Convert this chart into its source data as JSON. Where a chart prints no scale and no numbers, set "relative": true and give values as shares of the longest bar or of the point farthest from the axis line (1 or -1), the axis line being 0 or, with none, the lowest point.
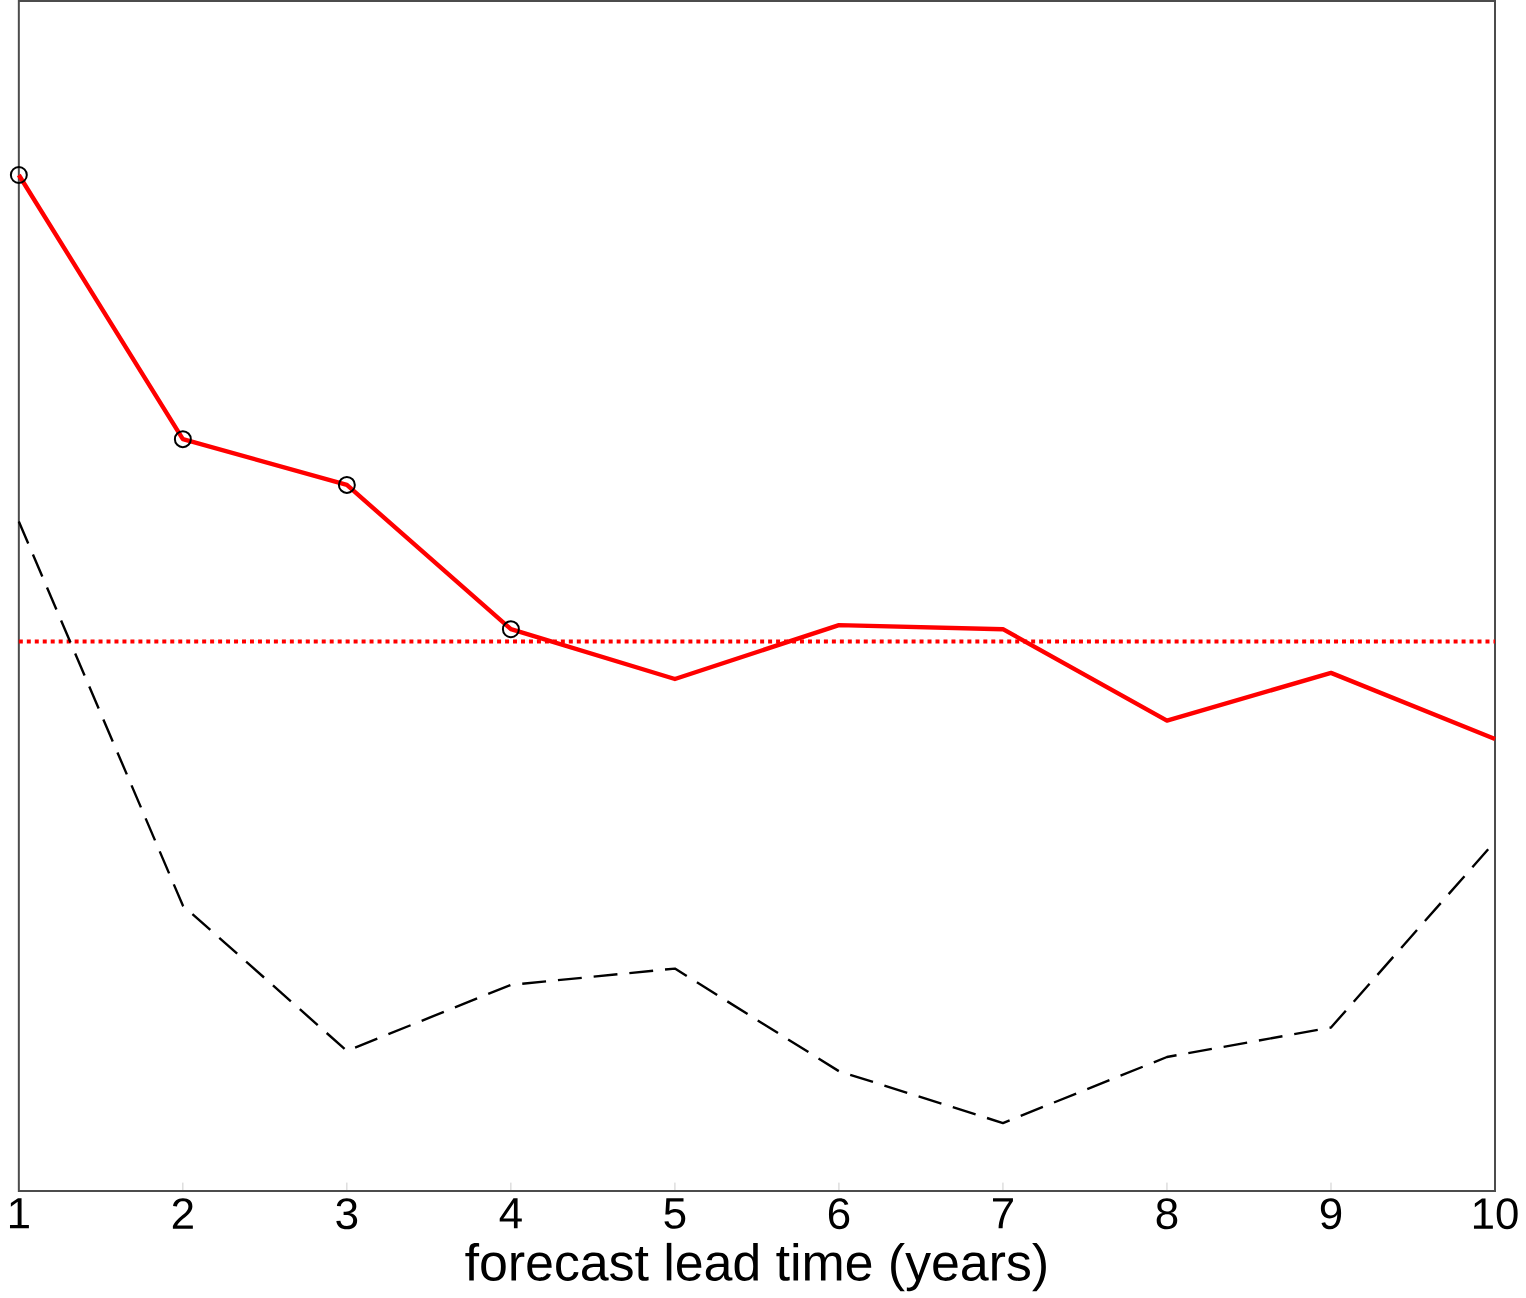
{
  "chart_data": {
    "type": "line",
    "xlabel": "forecast lead time (years)",
    "relative": true,
    "xlim": [
      1,
      10
    ],
    "xticks": [
      1,
      2,
      3,
      4,
      5,
      6,
      7,
      8,
      9,
      10
    ],
    "x": [
      1,
      2,
      3,
      4,
      5,
      6,
      7,
      8,
      9,
      10
    ],
    "series": [
      {
        "color": "#ff0000",
        "line_style": "solid",
        "values": [
          1.0,
          0.74,
          0.695,
          0.553,
          0.504,
          0.557,
          0.553,
          0.463,
          0.51,
          0.445
        ]
      },
      {
        "color": "#000000",
        "line_style": "dashed",
        "values": [
          0.659,
          0.281,
          0.138,
          0.203,
          0.219,
          0.118,
          0.067,
          0.132,
          0.161,
          0.344
        ]
      },
      {
        "type": "scatter",
        "marker": "circle",
        "color": "#000000",
        "x": [
          1,
          2,
          3,
          4
        ],
        "values": [
          1.0,
          0.74,
          0.695,
          0.553
        ]
      }
    ],
    "ref_lines": [
      {
        "axis": "y",
        "value": 0.541,
        "color": "#ff0000",
        "line_style": "dotted"
      }
    ]
  }
}
